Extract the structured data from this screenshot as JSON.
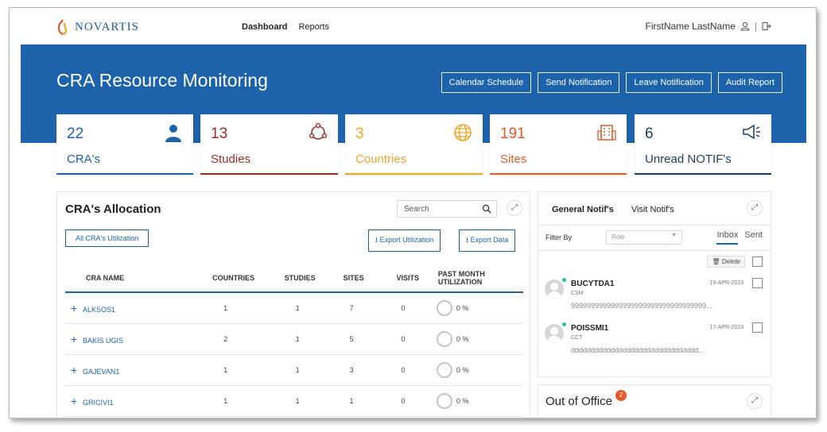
{
  "brand": {
    "name": "NOVARTIS"
  },
  "nav": {
    "items": [
      "Dashboard",
      "Reports"
    ]
  },
  "user": {
    "name": "FirstName LastName"
  },
  "banner": {
    "title": "CRA Resource Monitoring",
    "buttons": [
      "Calendar Schedule",
      "Send Notification",
      "Leave Notification",
      "Audit Report"
    ]
  },
  "stats": [
    {
      "value": "22",
      "label": "CRA's",
      "color": "#1c63ac",
      "icon": "user-icon"
    },
    {
      "value": "13",
      "label": "Studies",
      "color": "#9b2d25",
      "icon": "molecule-icon"
    },
    {
      "value": "3",
      "label": "Countries",
      "color": "#f0a523",
      "icon": "globe-icon"
    },
    {
      "value": "191",
      "label": "Sites",
      "color": "#e5582c",
      "icon": "building-icon"
    },
    {
      "value": "6",
      "label": "Unread NOTIF's",
      "color": "#1f3f5f",
      "icon": "megaphone-icon"
    }
  ],
  "allocation": {
    "title": "CRA's Allocation",
    "search_placeholder": "Search",
    "utilization_button": "All CRA's Utilization",
    "export_utilization": "Export Utilization",
    "export_data": "Export Data",
    "columns": [
      "CRA NAME",
      "COUNTRIES",
      "STUDIES",
      "SITES",
      "VISITS",
      "PAST MONTH UTILIZATION"
    ],
    "rows": [
      {
        "name": "ALKSOS1",
        "countries": "1",
        "studies": "1",
        "sites": "7",
        "visits": "0",
        "util": "0 %"
      },
      {
        "name": "BAKIS UGIS",
        "countries": "2",
        "studies": "1",
        "sites": "5",
        "visits": "0",
        "util": "0 %"
      },
      {
        "name": "GAJEVAN1",
        "countries": "1",
        "studies": "1",
        "sites": "3",
        "visits": "0",
        "util": "0 %"
      },
      {
        "name": "GRICIVI1",
        "countries": "1",
        "studies": "1",
        "sites": "1",
        "visits": "0",
        "util": "0 %"
      }
    ]
  },
  "notifications": {
    "tabs": [
      "General Notif's",
      "Visit Notif's"
    ],
    "filter_label": "Filter By",
    "role_placeholder": "Role",
    "inbox": "Inbox",
    "sent": "Sent",
    "delete": "Delete",
    "items": [
      {
        "name": "BUCYTDA1",
        "role": "CSM",
        "date": "19-APR-2019",
        "message": "9999999999999999999999999999999999..."
      },
      {
        "name": "POISSMI1",
        "role": "CCT",
        "date": "17-APR-2019",
        "message": "dddddddddddddddddddddddddddddddd..."
      }
    ]
  },
  "out_of_office": {
    "title": "Out of Office",
    "badge": "2"
  }
}
